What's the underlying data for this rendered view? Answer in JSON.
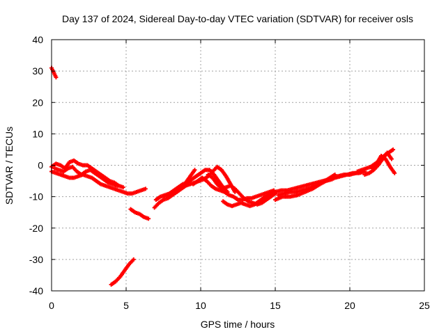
{
  "chart_data": {
    "type": "scatter",
    "title": "Day 137 of 2024, Sidereal Day-to-day VTEC variation (SDTVAR) for receiver osls",
    "xlabel": "GPS time / hours",
    "ylabel": "SDTVAR / TECUs",
    "xlim": [
      0,
      25
    ],
    "ylim": [
      -40,
      40
    ],
    "xticks": [
      0,
      5,
      10,
      15,
      20,
      25
    ],
    "yticks": [
      -40,
      -30,
      -20,
      -10,
      0,
      10,
      20,
      30,
      40
    ],
    "grid": true,
    "marker": "plus",
    "color": "#ff0000",
    "series": [
      {
        "name": "s1",
        "x": [
          0.0,
          0.1,
          0.2,
          0.3
        ],
        "y": [
          31.0,
          30.0,
          29.0,
          28.0
        ]
      },
      {
        "name": "s2",
        "x": [
          0.0,
          0.3,
          0.6,
          0.9,
          1.2,
          1.5,
          1.8,
          2.1,
          2.4,
          2.7,
          3.0,
          3.3,
          3.6,
          3.9,
          4.2,
          4.5,
          4.8,
          5.1,
          5.4,
          5.7,
          6.0,
          6.3
        ],
        "y": [
          -2.0,
          -2.5,
          -3.0,
          -3.5,
          -4.0,
          -4.0,
          -3.5,
          -3.0,
          -3.5,
          -4.0,
          -5.0,
          -6.0,
          -6.5,
          -7.0,
          -7.5,
          -8.0,
          -8.5,
          -9.0,
          -9.0,
          -8.5,
          -8.0,
          -7.5
        ]
      },
      {
        "name": "s3",
        "x": [
          0.0,
          0.3,
          0.6,
          0.9,
          1.2,
          1.5,
          1.8,
          2.1,
          2.4,
          2.7,
          3.0,
          3.3,
          3.6,
          3.9,
          4.2,
          4.5,
          4.8
        ],
        "y": [
          -0.5,
          0.5,
          0.0,
          -1.0,
          1.0,
          1.5,
          0.5,
          0.0,
          0.0,
          -1.0,
          -2.0,
          -3.0,
          -4.0,
          -5.0,
          -5.5,
          -6.5,
          -7.0
        ]
      },
      {
        "name": "s4",
        "x": [
          0.2,
          0.5,
          0.8,
          1.1,
          1.4,
          1.7,
          2.0,
          2.3,
          2.6,
          2.9,
          3.2,
          3.5,
          3.8,
          4.1,
          4.4
        ],
        "y": [
          -1.0,
          -1.5,
          -2.0,
          -1.0,
          -0.5,
          -2.0,
          -3.0,
          -2.0,
          -1.5,
          -2.5,
          -3.5,
          -4.5,
          -5.5,
          -6.0,
          -6.5
        ]
      },
      {
        "name": "s5",
        "x": [
          5.3,
          5.6,
          5.9,
          6.2,
          6.5
        ],
        "y": [
          -14.0,
          -15.0,
          -15.5,
          -16.5,
          -17.0
        ]
      },
      {
        "name": "s6",
        "x": [
          4.0,
          4.3,
          4.6,
          4.9,
          5.2,
          5.5
        ],
        "y": [
          -38.0,
          -37.0,
          -35.5,
          -33.5,
          -31.5,
          -30.0
        ]
      },
      {
        "name": "s7",
        "x": [
          6.9,
          7.2,
          7.5,
          7.8,
          8.1,
          8.4,
          8.7,
          9.0,
          9.3,
          9.6
        ],
        "y": [
          -13.5,
          -12.0,
          -11.0,
          -10.5,
          -9.5,
          -8.5,
          -7.0,
          -5.5,
          -3.5,
          -1.5
        ]
      },
      {
        "name": "s8",
        "x": [
          7.0,
          7.3,
          7.6,
          7.9,
          8.2,
          8.5,
          8.8,
          9.1,
          9.4,
          9.7,
          10.0,
          10.3,
          10.6,
          10.9,
          11.2,
          11.5,
          11.8
        ],
        "y": [
          -11.0,
          -10.0,
          -9.5,
          -9.0,
          -8.0,
          -7.0,
          -6.0,
          -5.5,
          -4.5,
          -3.5,
          -2.5,
          -1.5,
          -1.5,
          -3.0,
          -5.0,
          -7.0,
          -8.5
        ]
      },
      {
        "name": "s9",
        "x": [
          7.5,
          7.8,
          8.1,
          8.4,
          8.7,
          9.0,
          9.3,
          9.6,
          9.9,
          10.2,
          10.5,
          10.8,
          11.1,
          11.4,
          11.7,
          12.0,
          12.3
        ],
        "y": [
          -10.0,
          -9.5,
          -9.0,
          -8.5,
          -7.5,
          -6.5,
          -6.0,
          -5.5,
          -5.0,
          -4.5,
          -3.5,
          -2.0,
          -0.5,
          -1.5,
          -3.5,
          -6.0,
          -8.5
        ]
      },
      {
        "name": "s10",
        "x": [
          9.5,
          9.8,
          10.1,
          10.4,
          10.7,
          11.0,
          11.3,
          11.6,
          11.9,
          12.2,
          12.5,
          12.8,
          13.1,
          13.4,
          13.7,
          14.0,
          14.3,
          14.6,
          14.9
        ],
        "y": [
          -6.0,
          -5.0,
          -4.0,
          -5.0,
          -6.5,
          -7.5,
          -8.0,
          -8.5,
          -9.5,
          -10.0,
          -11.0,
          -11.0,
          -10.5,
          -10.5,
          -10.0,
          -9.5,
          -9.0,
          -8.5,
          -8.0
        ]
      },
      {
        "name": "s11",
        "x": [
          10.5,
          10.8,
          11.1,
          11.4,
          11.7,
          12.0,
          12.3,
          12.6,
          12.9,
          13.2,
          13.5,
          13.8,
          14.1,
          14.4,
          14.7,
          15.0
        ],
        "y": [
          -3.0,
          -4.0,
          -6.0,
          -7.5,
          -7.0,
          -6.5,
          -7.5,
          -9.0,
          -10.5,
          -11.5,
          -12.0,
          -12.5,
          -12.0,
          -11.0,
          -10.0,
          -9.0
        ]
      },
      {
        "name": "s12",
        "x": [
          11.5,
          11.8,
          12.1,
          12.4,
          12.7,
          13.0,
          13.3,
          13.6,
          13.9,
          14.2,
          14.5,
          14.8
        ],
        "y": [
          -11.5,
          -12.5,
          -13.0,
          -12.5,
          -12.0,
          -12.5,
          -13.0,
          -12.5,
          -11.5,
          -10.5,
          -9.5,
          -8.5
        ]
      },
      {
        "name": "s13",
        "x": [
          15.0,
          15.4,
          15.8,
          16.2,
          16.6,
          17.0,
          17.4,
          17.8,
          18.2,
          18.6,
          19.0,
          19.4,
          19.8,
          20.2,
          20.6,
          21.0
        ],
        "y": [
          -8.5,
          -8.0,
          -8.0,
          -7.5,
          -7.0,
          -6.5,
          -6.0,
          -5.5,
          -5.0,
          -4.5,
          -4.0,
          -3.5,
          -3.0,
          -2.5,
          -2.5,
          -2.0
        ]
      },
      {
        "name": "s14",
        "x": [
          15.2,
          15.6,
          16.0,
          16.4,
          16.8,
          17.2,
          17.6,
          18.0,
          18.4,
          18.8,
          19.2,
          19.6,
          20.0,
          20.4,
          20.8
        ],
        "y": [
          -9.5,
          -9.0,
          -8.5,
          -8.5,
          -8.0,
          -7.5,
          -6.5,
          -6.0,
          -5.0,
          -4.5,
          -3.5,
          -3.0,
          -3.0,
          -2.5,
          -2.0
        ]
      },
      {
        "name": "s15",
        "x": [
          15.0,
          15.5,
          16.0,
          16.5,
          17.0,
          17.5,
          18.0,
          18.5,
          19.0
        ],
        "y": [
          -11.0,
          -10.0,
          -10.0,
          -9.5,
          -8.5,
          -7.5,
          -6.0,
          -4.5,
          -3.0
        ]
      },
      {
        "name": "s16",
        "x": [
          20.5,
          20.8,
          21.1,
          21.4,
          21.7,
          22.0,
          22.3,
          22.6,
          22.9
        ],
        "y": [
          -2.0,
          -1.5,
          -1.0,
          -0.5,
          0.5,
          1.5,
          3.0,
          4.0,
          5.0
        ]
      },
      {
        "name": "s17",
        "x": [
          21.0,
          21.3,
          21.6,
          21.9,
          22.2,
          22.5,
          22.8
        ],
        "y": [
          -3.0,
          -2.5,
          -1.5,
          0.0,
          2.0,
          4.0,
          2.0
        ]
      },
      {
        "name": "s18",
        "x": [
          21.5,
          21.8,
          22.1,
          22.4,
          22.7,
          23.0
        ],
        "y": [
          -1.0,
          0.5,
          3.0,
          2.0,
          -0.5,
          -2.5
        ]
      }
    ]
  }
}
